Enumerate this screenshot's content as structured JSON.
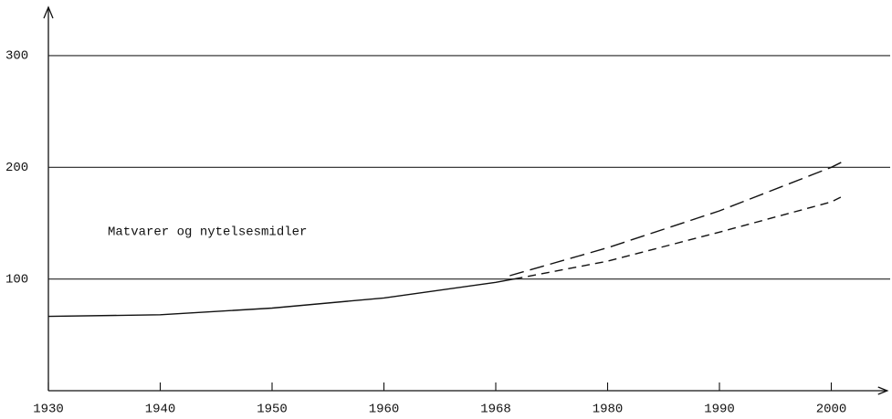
{
  "chart_data": {
    "type": "line",
    "annotation": "Matvarer og nytelsesmidler",
    "xlim": [
      1930,
      2005
    ],
    "xticks": [
      1930,
      1940,
      1950,
      1960,
      1968,
      1980,
      1990,
      2000
    ],
    "ylim": [
      0,
      340
    ],
    "yticks": [
      100,
      200,
      300
    ],
    "grid": true,
    "series": [
      {
        "color": "#111111",
        "linestyle": "solid",
        "x": [
          1930,
          1940,
          1950,
          1960,
          1968,
          1970
        ],
        "values": [
          66.5,
          68,
          74,
          83,
          97,
          100
        ]
      },
      {
        "color": "#111111",
        "linestyle": "dashed",
        "x": [
          1969.5,
          1980,
          1990,
          2000,
          2001
        ],
        "values": [
          103,
          128,
          161,
          200,
          205
        ]
      },
      {
        "color": "#111111",
        "linestyle": "short-dashed",
        "x": [
          1970,
          1980,
          1990,
          2000,
          2001
        ],
        "values": [
          100,
          116,
          142,
          169,
          174
        ]
      }
    ]
  }
}
